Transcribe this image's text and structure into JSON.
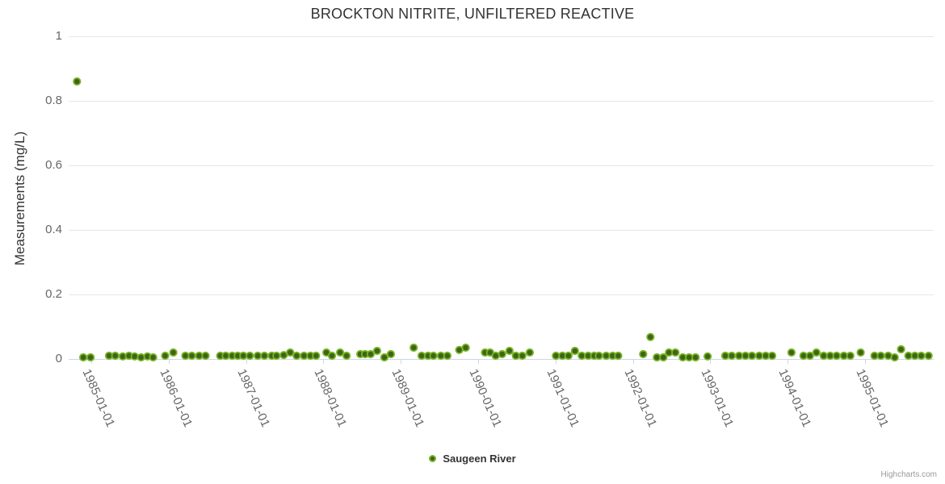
{
  "chart": {
    "credits": "Highcharts.com",
    "legend": {
      "label": "Saugeen River"
    },
    "colors": {
      "point_fill": "#406417",
      "point_stroke": "#76b524",
      "grid_line": "#e6e6e6",
      "axis_line": "#ccd6eb",
      "title_text": "#333333",
      "label_text": "#666666",
      "credits_text": "#999999"
    }
  },
  "chart_data": {
    "type": "scatter",
    "title": "BROCKTON NITRITE, UNFILTERED REACTIVE",
    "xlabel": "",
    "ylabel": "Measurements (mg/L)",
    "ylim": [
      0,
      1
    ],
    "yticks": [
      0,
      0.2,
      0.4,
      0.6,
      0.8,
      1
    ],
    "yticklabels": [
      "0",
      "0.2",
      "0.4",
      "0.6",
      "0.8",
      "1"
    ],
    "xticks": [
      "1985-01-01",
      "1986-01-01",
      "1987-01-01",
      "1988-01-01",
      "1989-01-01",
      "1990-01-01",
      "1991-01-01",
      "1992-01-01",
      "1993-01-01",
      "1994-01-01",
      "1995-01-01"
    ],
    "grid": "horizontal",
    "legend_position": "bottom-center",
    "series": [
      {
        "name": "Saugeen River",
        "points": [
          [
            "1984-10-25",
            0.86
          ],
          [
            "1984-11-24",
            0.005
          ],
          [
            "1984-12-28",
            0.005
          ],
          [
            "1985-03-24",
            0.01
          ],
          [
            "1985-04-23",
            0.01
          ],
          [
            "1985-05-28",
            0.008
          ],
          [
            "1985-06-27",
            0.01
          ],
          [
            "1985-07-23",
            0.008
          ],
          [
            "1985-08-23",
            0.005
          ],
          [
            "1985-09-23",
            0.008
          ],
          [
            "1985-10-19",
            0.005
          ],
          [
            "1985-12-15",
            0.01
          ],
          [
            "1986-01-23",
            0.02
          ],
          [
            "1986-03-19",
            0.01
          ],
          [
            "1986-04-19",
            0.01
          ],
          [
            "1986-05-23",
            0.01
          ],
          [
            "1986-06-23",
            0.01
          ],
          [
            "1986-09-01",
            0.01
          ],
          [
            "1986-09-27",
            0.01
          ],
          [
            "1986-10-27",
            0.01
          ],
          [
            "1986-11-23",
            0.01
          ],
          [
            "1986-12-19",
            0.01
          ],
          [
            "1987-01-19",
            0.01
          ],
          [
            "1987-02-26",
            0.01
          ],
          [
            "1987-03-27",
            0.01
          ],
          [
            "1987-05-01",
            0.01
          ],
          [
            "1987-05-23",
            0.01
          ],
          [
            "1987-06-27",
            0.012
          ],
          [
            "1987-07-27",
            0.02
          ],
          [
            "1987-08-27",
            0.01
          ],
          [
            "1987-10-01",
            0.01
          ],
          [
            "1987-11-01",
            0.01
          ],
          [
            "1987-11-27",
            0.01
          ],
          [
            "1988-01-15",
            0.02
          ],
          [
            "1988-02-11",
            0.01
          ],
          [
            "1988-03-19",
            0.02
          ],
          [
            "1988-04-19",
            0.01
          ],
          [
            "1988-06-23",
            0.015
          ],
          [
            "1988-07-15",
            0.015
          ],
          [
            "1988-08-11",
            0.015
          ],
          [
            "1988-09-11",
            0.025
          ],
          [
            "1988-10-15",
            0.005
          ],
          [
            "1988-11-15",
            0.015
          ],
          [
            "1989-03-01",
            0.035
          ],
          [
            "1989-04-08",
            0.01
          ],
          [
            "1989-05-08",
            0.01
          ],
          [
            "1989-06-03",
            0.01
          ],
          [
            "1989-07-08",
            0.01
          ],
          [
            "1989-08-08",
            0.01
          ],
          [
            "1989-10-03",
            0.028
          ],
          [
            "1989-11-03",
            0.035
          ],
          [
            "1990-02-03",
            0.02
          ],
          [
            "1990-02-27",
            0.02
          ],
          [
            "1990-03-23",
            0.01
          ],
          [
            "1990-04-23",
            0.015
          ],
          [
            "1990-05-27",
            0.025
          ],
          [
            "1990-06-27",
            0.01
          ],
          [
            "1990-07-27",
            0.01
          ],
          [
            "1990-09-01",
            0.02
          ],
          [
            "1991-01-03",
            0.01
          ],
          [
            "1991-02-03",
            0.01
          ],
          [
            "1991-03-01",
            0.01
          ],
          [
            "1991-04-01",
            0.025
          ],
          [
            "1991-05-03",
            0.01
          ],
          [
            "1991-06-03",
            0.01
          ],
          [
            "1991-07-01",
            0.01
          ],
          [
            "1991-07-23",
            0.01
          ],
          [
            "1991-08-27",
            0.01
          ],
          [
            "1991-09-27",
            0.01
          ],
          [
            "1991-10-23",
            0.01
          ],
          [
            "1992-02-19",
            0.015
          ],
          [
            "1992-03-23",
            0.068
          ],
          [
            "1992-04-23",
            0.005
          ],
          [
            "1992-05-23",
            0.005
          ],
          [
            "1992-06-19",
            0.02
          ],
          [
            "1992-07-19",
            0.02
          ],
          [
            "1992-08-23",
            0.005
          ],
          [
            "1992-09-23",
            0.005
          ],
          [
            "1992-10-23",
            0.005
          ],
          [
            "1992-12-19",
            0.008
          ],
          [
            "1993-03-11",
            0.01
          ],
          [
            "1993-04-11",
            0.01
          ],
          [
            "1993-05-15",
            0.01
          ],
          [
            "1993-06-15",
            0.01
          ],
          [
            "1993-07-15",
            0.01
          ],
          [
            "1993-08-19",
            0.01
          ],
          [
            "1993-09-19",
            0.01
          ],
          [
            "1993-10-19",
            0.01
          ],
          [
            "1994-01-19",
            0.02
          ],
          [
            "1994-03-15",
            0.01
          ],
          [
            "1994-04-15",
            0.01
          ],
          [
            "1994-05-15",
            0.02
          ],
          [
            "1994-06-19",
            0.01
          ],
          [
            "1994-07-19",
            0.01
          ],
          [
            "1994-08-19",
            0.01
          ],
          [
            "1994-09-23",
            0.01
          ],
          [
            "1994-10-23",
            0.01
          ],
          [
            "1994-12-11",
            0.02
          ],
          [
            "1995-02-15",
            0.01
          ],
          [
            "1995-03-15",
            0.01
          ],
          [
            "1995-04-19",
            0.01
          ],
          [
            "1995-05-19",
            0.005
          ],
          [
            "1995-06-19",
            0.03
          ],
          [
            "1995-07-23",
            0.01
          ],
          [
            "1995-08-23",
            0.01
          ],
          [
            "1995-09-23",
            0.01
          ],
          [
            "1995-10-27",
            0.01
          ]
        ]
      }
    ]
  }
}
